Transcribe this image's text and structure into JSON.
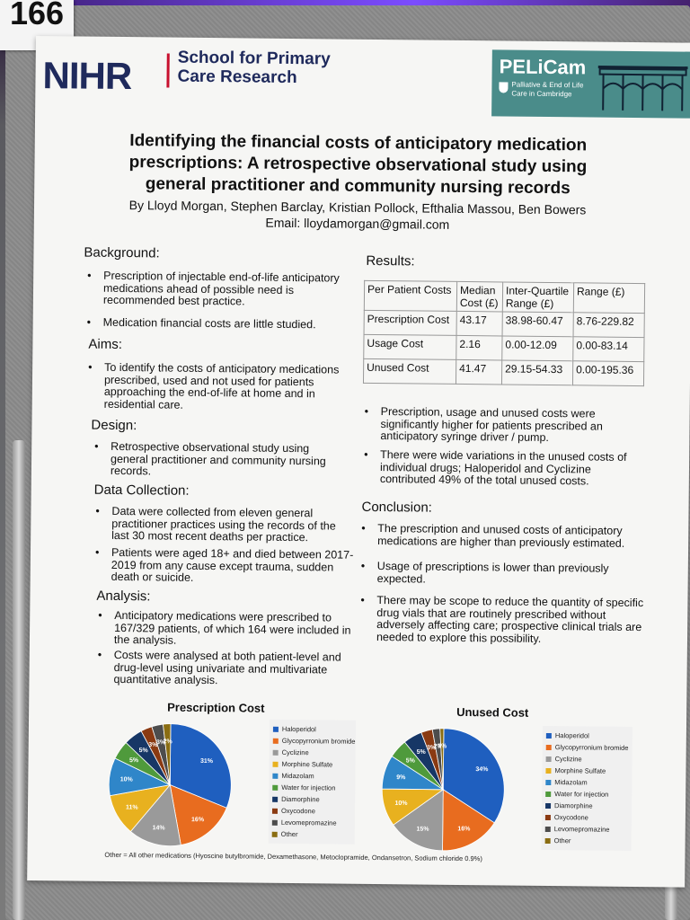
{
  "board_label": "166",
  "header": {
    "nihr_logo": "NIHR",
    "nihr_line1": "School for Primary",
    "nihr_line2": "Care Research",
    "pelicam_name": "PELiCam",
    "pelicam_line1": "Palliative & End of Life",
    "pelicam_line2": "Care in Cambridge"
  },
  "title": {
    "line1": "Identifying the financial costs of anticipatory medication",
    "line2": "prescriptions: A retrospective observational study using",
    "line3": "general practitioner and community nursing records"
  },
  "authors": "By Lloyd Morgan, Stephen Barclay, Kristian Pollock, Efthalia Massou, Ben Bowers",
  "email": "Email: lloydamorgan@gmail.com",
  "background": {
    "heading": "Background:",
    "bullets": [
      "Prescription of injectable end-of-life anticipatory medications ahead of possible need is recommended best practice.",
      "Medication financial costs are little studied."
    ]
  },
  "aims": {
    "heading": "Aims:",
    "bullets": [
      "To identify the costs of anticipatory medications prescribed, used and not used for patients approaching the end-of-life at home and in residential care."
    ]
  },
  "design": {
    "heading": "Design:",
    "bullets": [
      "Retrospective observational study using general practitioner and community nursing records."
    ]
  },
  "data_collection": {
    "heading": "Data Collection:",
    "bullets": [
      "Data were collected from eleven general practitioner practices using the records of the last 30 most recent deaths per practice.",
      "Patients were aged 18+ and died between 2017-2019 from any cause except trauma, sudden death or suicide."
    ]
  },
  "analysis": {
    "heading": "Analysis:",
    "bullets": [
      "Anticipatory medications were prescribed to 167/329 patients, of which 164 were included in the analysis.",
      "Costs were analysed at both patient-level and drug-level using univariate and multivariate quantitative analysis."
    ]
  },
  "results": {
    "heading": "Results:",
    "table": {
      "headers": [
        "Per Patient Costs",
        "Median Cost (£)",
        "Inter-Quartile Range (£)",
        "Range (£)"
      ],
      "rows": [
        [
          "Prescription Cost",
          "43.17",
          "38.98-60.47",
          "8.76-229.82"
        ],
        [
          "Usage Cost",
          "2.16",
          "0.00-12.09",
          "0.00-83.14"
        ],
        [
          "Unused Cost",
          "41.47",
          "29.15-54.33",
          "0.00-195.36"
        ]
      ]
    },
    "bullets": [
      "Prescription, usage and unused costs were significantly higher for patients prescribed an anticipatory syringe driver / pump.",
      "There were wide variations in the unused costs of individual drugs; Haloperidol and Cyclizine contributed 49% of the total unused costs."
    ]
  },
  "conclusion": {
    "heading": "Conclusion:",
    "bullets": [
      "The prescription and unused costs of anticipatory medications are higher than previously estimated.",
      "Usage of prescriptions is lower than previously expected.",
      "There may be scope to reduce the quantity of specific drug vials that are routinely prescribed without adversely affecting care; prospective clinical trials are needed to explore this possibility."
    ]
  },
  "footnote": "Other = All other medications (Hyoscine butylbromide, Dexamethasone, Metoclopramide, Ondansetron, Sodium chloride 0.9%)",
  "chart_data": [
    {
      "type": "pie",
      "title": "Prescription Cost",
      "categories": [
        "Haloperidol",
        "Glycopyrronium bromide",
        "Cyclizine",
        "Morphine Sulfate",
        "Midazolam",
        "Water for injection",
        "Diamorphine",
        "Oxycodone",
        "Levomepromazine",
        "Other"
      ],
      "values": [
        31,
        16,
        14,
        11,
        10,
        5,
        5,
        3,
        3,
        2
      ],
      "labels": [
        "31%",
        "16%",
        "14%",
        "11%",
        "10%",
        "5%",
        "5%",
        "3%",
        "3%",
        "2%"
      ],
      "colors": [
        "#1f5fbf",
        "#e86c1f",
        "#9a9a9a",
        "#e8b11f",
        "#2f86c9",
        "#4f9a3c",
        "#173766",
        "#8a3a12",
        "#4d4d4d",
        "#8a6d12"
      ],
      "legend": "right"
    },
    {
      "type": "pie",
      "title": "Unused Cost",
      "categories": [
        "Haloperidol",
        "Glycopyrronium bromide",
        "Cyclizine",
        "Morphine Sulfate",
        "Midazolam",
        "Water for injection",
        "Diamorphine",
        "Oxycodone",
        "Levomepromazine",
        "Other"
      ],
      "values": [
        34,
        16,
        15,
        10,
        9,
        5,
        5,
        3,
        2,
        1
      ],
      "labels": [
        "34%",
        "16%",
        "15%",
        "10%",
        "9%",
        "5%",
        "5%",
        "3%",
        "2%",
        "1%"
      ],
      "colors": [
        "#1f5fbf",
        "#e86c1f",
        "#9a9a9a",
        "#e8b11f",
        "#2f86c9",
        "#4f9a3c",
        "#173766",
        "#8a3a12",
        "#4d4d4d",
        "#8a6d12"
      ],
      "legend": "right"
    }
  ]
}
